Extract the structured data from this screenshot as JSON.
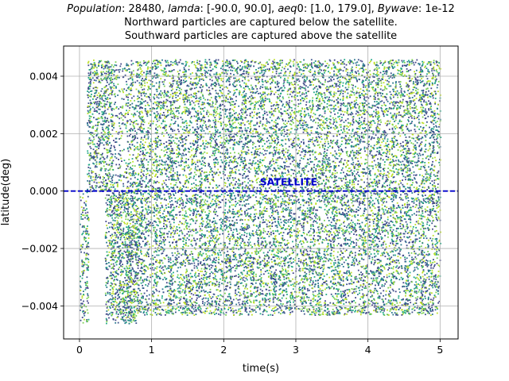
{
  "chart_data": {
    "type": "scatter",
    "title_parts": [
      {
        "text": "Population",
        "italic": true
      },
      {
        "text": ": 28480, ",
        "italic": false
      },
      {
        "text": "lamda",
        "italic": true
      },
      {
        "text": ": [-90.0, 90.0], ",
        "italic": false
      },
      {
        "text": "aeq",
        "italic": true
      },
      {
        "text": "0: [1.0, 179.0], ",
        "italic": false
      },
      {
        "text": "Bywave",
        "italic": true
      },
      {
        "text": ": 1e-12",
        "italic": false
      }
    ],
    "subtitle_lines": [
      "Northward particles are captured below the satellite.",
      "Southward particles are captured above the satellite"
    ],
    "xlabel": "time(s)",
    "ylabel": "latitude(deg)",
    "xlim": [
      -0.22,
      5.25
    ],
    "ylim": [
      -0.00515,
      0.00505
    ],
    "xticks": [
      0,
      1,
      2,
      3,
      4,
      5
    ],
    "xtick_labels": [
      "0",
      "1",
      "2",
      "3",
      "4",
      "5"
    ],
    "yticks": [
      -0.004,
      -0.002,
      0.0,
      0.002,
      0.004
    ],
    "ytick_labels": [
      "−0.004",
      "−0.002",
      "0.000",
      "0.002",
      "0.004"
    ],
    "grid": true,
    "satellite_line": {
      "y": 0.0,
      "label": "SATELLITE",
      "label_x": 2.5,
      "color": "#0000cc",
      "style": "dashed"
    },
    "colormap": "viridis",
    "palette": [
      "#414487",
      "#2a788e",
      "#22a884",
      "#7ad151",
      "#bddf26",
      "#3b528b"
    ],
    "description_of_distribution": {
      "t_range": [
        0.0,
        5.0
      ],
      "lat_range": [
        -0.0046,
        0.0046
      ],
      "upper_band_start_t": 0.1,
      "lower_gap_t": [
        0.12,
        0.33
      ]
    }
  }
}
